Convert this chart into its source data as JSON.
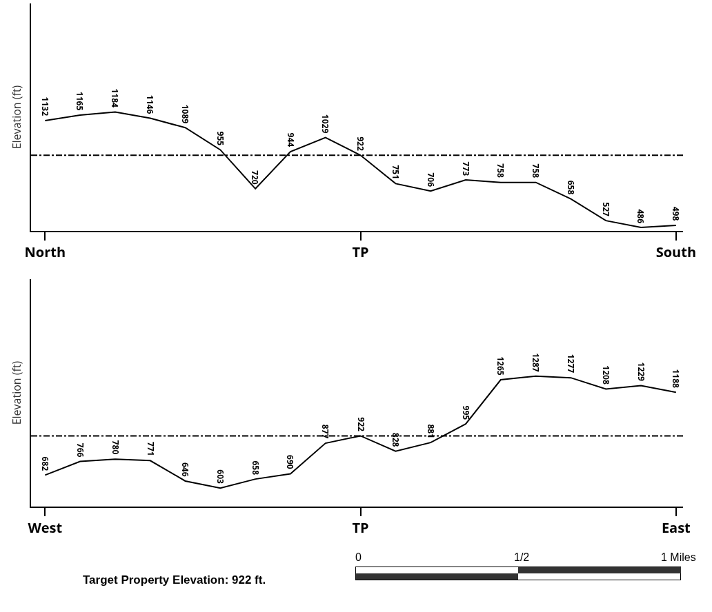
{
  "chart_data": [
    {
      "type": "line",
      "ylabel": "Elevation (ft)",
      "categories": [
        "North",
        null,
        null,
        null,
        null,
        null,
        null,
        null,
        null,
        "TP",
        null,
        null,
        null,
        null,
        null,
        null,
        null,
        null,
        "South"
      ],
      "series": [
        {
          "color": "#000000",
          "values": [
            1132,
            1165,
            1184,
            1146,
            1089,
            955,
            720,
            944,
            1029,
            922,
            751,
            706,
            773,
            758,
            758,
            658,
            527,
            486,
            498
          ]
        }
      ],
      "ylim": [
        465,
        1840
      ],
      "tick_labels": "x",
      "data_labels": true,
      "marker": "none",
      "ref_lines": [
        {
          "axis": "y",
          "value": 922,
          "color": "#000000"
        }
      ]
    },
    {
      "type": "line",
      "ylabel": "Elevation (ft)",
      "categories": [
        "West",
        null,
        null,
        null,
        null,
        null,
        null,
        null,
        null,
        "TP",
        null,
        null,
        null,
        null,
        null,
        null,
        null,
        null,
        "East"
      ],
      "series": [
        {
          "color": "#000000",
          "values": [
            682,
            766,
            780,
            771,
            646,
            603,
            658,
            690,
            877,
            922,
            828,
            881,
            995,
            1265,
            1287,
            1277,
            1208,
            1229,
            1188
          ]
        }
      ],
      "ylim": [
        490,
        1880
      ],
      "tick_labels": "x",
      "data_labels": true,
      "marker": "none",
      "ref_lines": [
        {
          "axis": "y",
          "value": 922,
          "color": "#000000"
        }
      ],
      "annotations": [
        "Target Property Elevation: 922 ft.",
        "0",
        "1/2",
        "1 Miles"
      ]
    }
  ]
}
